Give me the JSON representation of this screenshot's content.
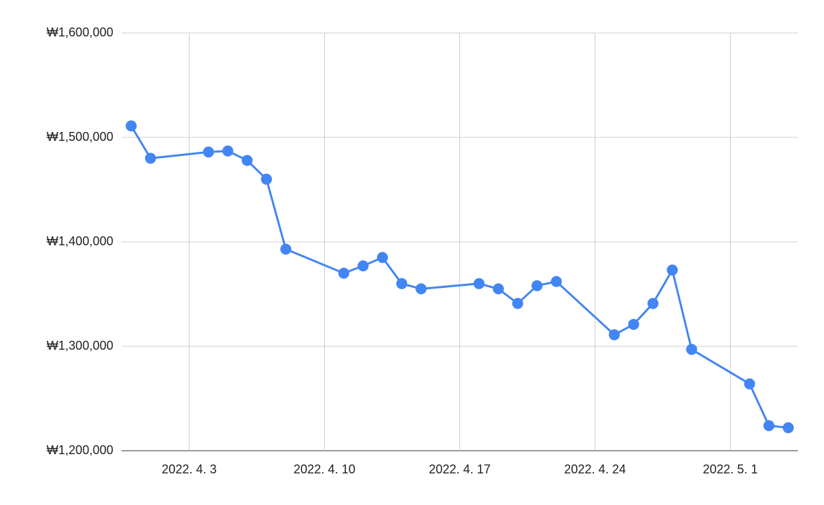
{
  "chart_data": {
    "type": "line",
    "x": [
      "2022-03-31",
      "2022-04-01",
      "2022-04-04",
      "2022-04-05",
      "2022-04-06",
      "2022-04-07",
      "2022-04-08",
      "2022-04-11",
      "2022-04-12",
      "2022-04-13",
      "2022-04-14",
      "2022-04-15",
      "2022-04-18",
      "2022-04-19",
      "2022-04-20",
      "2022-04-21",
      "2022-04-22",
      "2022-04-25",
      "2022-04-26",
      "2022-04-27",
      "2022-04-28",
      "2022-04-29",
      "2022-05-02",
      "2022-05-03",
      "2022-05-04"
    ],
    "series": [
      {
        "color": "#4285f4",
        "values": [
          1511000,
          1480000,
          1486000,
          1487000,
          1478000,
          1460000,
          1393000,
          1370000,
          1377000,
          1385000,
          1360000,
          1355000,
          1360000,
          1355000,
          1341000,
          1358000,
          1362000,
          1311000,
          1321000,
          1341000,
          1373000,
          1297000,
          1264000,
          1224000,
          1222000
        ]
      }
    ],
    "xlim": [
      "2022-03-30T12:00Z",
      "2022-05-04T12:00Z"
    ],
    "xticks": [
      {
        "value": "2022-04-03",
        "label": "2022. 4. 3"
      },
      {
        "value": "2022-04-10",
        "label": "2022. 4. 10"
      },
      {
        "value": "2022-04-17",
        "label": "2022. 4. 17"
      },
      {
        "value": "2022-04-24",
        "label": "2022. 4. 24"
      },
      {
        "value": "2022-05-01",
        "label": "2022. 5. 1"
      }
    ],
    "ylim": [
      1200000,
      1600000
    ],
    "yticks": [
      {
        "value": 1200000,
        "label": "₩1,200,000"
      },
      {
        "value": 1300000,
        "label": "₩1,300,000"
      },
      {
        "value": 1400000,
        "label": "₩1,400,000"
      },
      {
        "value": 1500000,
        "label": "₩1,500,000"
      },
      {
        "value": 1600000,
        "label": "₩1,600,000"
      }
    ],
    "grid": true
  }
}
